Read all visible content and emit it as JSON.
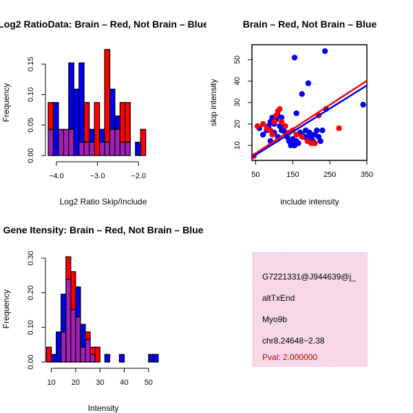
{
  "colors": {
    "red": "#ff0000",
    "blue": "#0000ee",
    "overlap": "#9b1bb0",
    "info_bg": "#f8dcec"
  },
  "chart_data": [
    {
      "type": "bar",
      "title": "Log2 RatioData: Brain – Red, Not Brain – Blue",
      "xlabel": "Log2 Ratio Skip/Include",
      "ylabel": "Frequency",
      "xlim": [
        -4.2,
        -1.35
      ],
      "ylim": [
        0,
        0.175
      ],
      "xticks": [
        -4.0,
        -3.0,
        -2.0
      ],
      "xtick_labels": [
        "−4.0",
        "−3.0",
        "−2.0"
      ],
      "yticks": [
        0.0,
        0.05,
        0.1,
        0.15
      ],
      "ytick_labels": [
        "0.00",
        "0.05",
        "0.10",
        "0.15"
      ],
      "bin_start": -4.2,
      "bin_width": 0.125,
      "series": [
        {
          "name": "Brain",
          "color": "red",
          "values": [
            0.087,
            0.0,
            0.043,
            0.043,
            0.043,
            0.0,
            0.022,
            0.087,
            0.022,
            0.087,
            0.022,
            0.174,
            0.043,
            0.043,
            0.087,
            0.087,
            0.0,
            0.0,
            0.043
          ]
        },
        {
          "name": "Not Brain",
          "color": "blue",
          "values": [
            0.043,
            0.087,
            0.043,
            0.043,
            0.152,
            0.109,
            0.152,
            0.022,
            0.043,
            0.0,
            0.043,
            0.022,
            0.109,
            0.065,
            0.022,
            0.022,
            0.0,
            0.022,
            0.0
          ]
        }
      ]
    },
    {
      "type": "scatter",
      "title": "Brain – Red, Not Brain – Blue",
      "xlabel": "include intensity",
      "ylabel": "skip intensity",
      "xlim": [
        40,
        350
      ],
      "ylim": [
        3,
        57
      ],
      "xticks": [
        50,
        150,
        250,
        350
      ],
      "xtick_labels": [
        "50",
        "150",
        "250",
        "350"
      ],
      "yticks": [
        10,
        20,
        30,
        40,
        50
      ],
      "ytick_labels": [
        "10",
        "20",
        "30",
        "40",
        "50"
      ],
      "series": [
        {
          "name": "Not Brain",
          "color": "blue",
          "x": [
            60,
            70,
            80,
            85,
            90,
            95,
            100,
            105,
            110,
            115,
            120,
            125,
            130,
            135,
            140,
            145,
            150,
            155,
            160,
            165,
            170,
            175,
            180,
            185,
            190,
            195,
            200,
            205,
            210,
            220,
            230,
            240,
            155,
            175,
            192,
            237,
            340,
            100,
            110,
            90,
            120,
            145,
            160,
            170,
            185,
            200,
            215,
            225
          ],
          "y": [
            18,
            15,
            17,
            19,
            21,
            23,
            20,
            22,
            24,
            19,
            23,
            18,
            16,
            14,
            12,
            11,
            13,
            10,
            25,
            11,
            16,
            15,
            14,
            17,
            13,
            16,
            15,
            12,
            15,
            14,
            17,
            27,
            51,
            34,
            39,
            54,
            29,
            16,
            14,
            12,
            17,
            10,
            12,
            16,
            14,
            13,
            17,
            12
          ]
        },
        {
          "name": "Brain",
          "color": "red",
          "x": [
            45,
            55,
            70,
            80,
            90,
            95,
            100,
            105,
            110,
            115,
            120,
            130,
            140,
            150,
            160,
            175,
            190,
            200,
            210,
            220,
            275
          ],
          "y": [
            5,
            19,
            20,
            18,
            17,
            15,
            21,
            24,
            26,
            27,
            21,
            19,
            16,
            17,
            15,
            14,
            12,
            11,
            11,
            24,
            18
          ]
        }
      ],
      "fit_lines": [
        {
          "name": "Brain",
          "color": "red",
          "x": [
            40,
            350
          ],
          "y": [
            5.2,
            40.2
          ]
        },
        {
          "name": "Not Brain",
          "color": "blue",
          "x": [
            40,
            350
          ],
          "y": [
            4.5,
            38.0
          ]
        }
      ]
    },
    {
      "type": "bar",
      "title": "Gene Itensity: Brain – Red, Not Brain – Blue",
      "xlabel": "Intensity",
      "ylabel": "Frequency",
      "xlim": [
        7,
        56
      ],
      "ylim": [
        0,
        0.31
      ],
      "xticks": [
        10,
        20,
        30,
        40,
        50
      ],
      "xtick_labels": [
        "10",
        "20",
        "30",
        "40",
        "50"
      ],
      "yticks": [
        0.0,
        0.1,
        0.2,
        0.3
      ],
      "ytick_labels": [
        "0.00",
        "0.10",
        "0.20",
        "0.30"
      ],
      "bin_start": 8,
      "bin_width": 2,
      "series": [
        {
          "name": "Brain",
          "color": "red",
          "values": [
            0.043,
            0.0,
            0.0,
            0.087,
            0.304,
            0.261,
            0.13,
            0.043,
            0.087,
            0.043,
            0.043,
            0.0,
            0.0,
            0.0,
            0.0,
            0.0,
            0.0,
            0.0,
            0.0,
            0.0,
            0.0,
            0.0,
            0.0
          ]
        },
        {
          "name": "Not Brain",
          "color": "blue",
          "values": [
            0.0,
            0.022,
            0.087,
            0.196,
            0.239,
            0.152,
            0.217,
            0.109,
            0.065,
            0.022,
            0.0,
            0.0,
            0.022,
            0.0,
            0.0,
            0.022,
            0.0,
            0.0,
            0.0,
            0.0,
            0.0,
            0.022,
            0.022
          ]
        }
      ]
    }
  ],
  "info": {
    "id": "G7221331@J944639@j_",
    "event_type": "altTxEnd",
    "gene": "Myo9b",
    "location": "chr8.24648−2.38",
    "pval": "Pval: 2.000000"
  }
}
